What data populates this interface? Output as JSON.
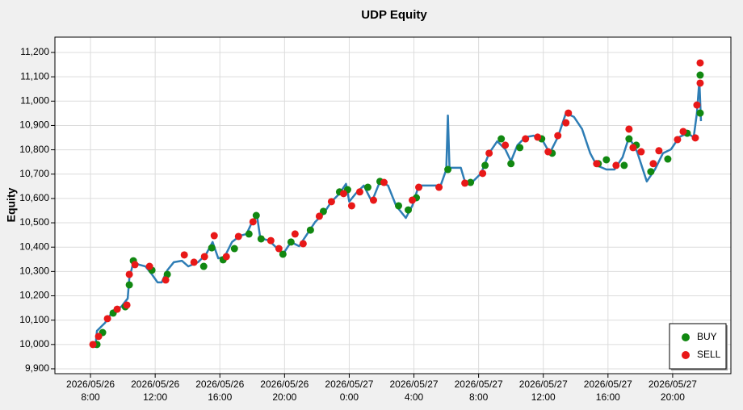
{
  "chart_data": {
    "type": "line",
    "title": "UDP Equity",
    "ylabel": "Equity",
    "xlim": [
      5.8,
      47.6
    ],
    "ylim": [
      9880,
      11263
    ],
    "xticks": [
      {
        "value": 8,
        "label": "2026/05/26\n8:00"
      },
      {
        "value": 12,
        "label": "2026/05/26\n12:00"
      },
      {
        "value": 16,
        "label": "2026/05/26\n16:00"
      },
      {
        "value": 20,
        "label": "2026/05/26\n20:00"
      },
      {
        "value": 24,
        "label": "2026/05/27\n0:00"
      },
      {
        "value": 28,
        "label": "2026/05/27\n4:00"
      },
      {
        "value": 32,
        "label": "2026/05/27\n8:00"
      },
      {
        "value": 36,
        "label": "2026/05/27\n12:00"
      },
      {
        "value": 40,
        "label": "2026/05/27\n16:00"
      },
      {
        "value": 44,
        "label": "2026/05/27\n20:00"
      }
    ],
    "yticks": [
      {
        "value": 9900,
        "label": "9,900"
      },
      {
        "value": 10000,
        "label": "10,000"
      },
      {
        "value": 10100,
        "label": "10,100"
      },
      {
        "value": 10200,
        "label": "10,200"
      },
      {
        "value": 10300,
        "label": "10,300"
      },
      {
        "value": 10400,
        "label": "10,400"
      },
      {
        "value": 10500,
        "label": "10,500"
      },
      {
        "value": 10600,
        "label": "10,600"
      },
      {
        "value": 10700,
        "label": "10,700"
      },
      {
        "value": 10800,
        "label": "10,800"
      },
      {
        "value": 10900,
        "label": "10,900"
      },
      {
        "value": 11000,
        "label": "11,000"
      },
      {
        "value": 11100,
        "label": "11,100"
      },
      {
        "value": 11200,
        "label": "11,200"
      }
    ],
    "grid": true,
    "legend": "lower right",
    "series": [
      {
        "type": "line",
        "color": "#2e7db5",
        "x": [
          8.0,
          8.3,
          8.4,
          8.9,
          9.4,
          9.9,
          10.3,
          10.4,
          10.65,
          11.0,
          11.4,
          11.8,
          12.15,
          12.4,
          12.75,
          13.15,
          13.65,
          14.05,
          14.65,
          15.15,
          15.55,
          15.9,
          16.3,
          16.75,
          17.25,
          17.65,
          18.0,
          18.3,
          18.5,
          19.05,
          19.55,
          19.9,
          20.4,
          20.9,
          21.4,
          21.9,
          22.4,
          22.9,
          23.4,
          23.8,
          24.0,
          24.4,
          24.9,
          25.4,
          25.9,
          26.4,
          26.9,
          27.5,
          27.9,
          28.3,
          28.9,
          29.65,
          30.0,
          30.1,
          30.2,
          30.9,
          31.15,
          31.65,
          32.15,
          32.65,
          33.15,
          33.65,
          34.0,
          34.4,
          34.9,
          35.4,
          35.9,
          36.4,
          36.9,
          37.4,
          37.9,
          38.4,
          38.9,
          39.3,
          39.9,
          40.4,
          40.9,
          41.3,
          41.8,
          42.4,
          42.9,
          43.4,
          43.9,
          44.4,
          44.9,
          45.3,
          45.5,
          45.65,
          45.75
        ],
        "values": [
          10000,
          9990,
          10056,
          10089,
          10139,
          10155,
          10189,
          10271,
          10338,
          10328,
          10321,
          10288,
          10255,
          10255,
          10305,
          10338,
          10344,
          10321,
          10338,
          10371,
          10421,
          10354,
          10361,
          10421,
          10447,
          10454,
          10504,
          10527,
          10437,
          10427,
          10394,
          10371,
          10421,
          10404,
          10454,
          10504,
          10537,
          10587,
          10620,
          10660,
          10587,
          10620,
          10653,
          10587,
          10670,
          10653,
          10570,
          10520,
          10570,
          10653,
          10653,
          10653,
          10719,
          10941,
          10726,
          10726,
          10670,
          10670,
          10703,
          10786,
          10835,
          10802,
          10753,
          10819,
          10852,
          10858,
          10845,
          10786,
          10852,
          10951,
          10935,
          10885,
          10786,
          10736,
          10719,
          10719,
          10769,
          10852,
          10792,
          10670,
          10719,
          10786,
          10802,
          10852,
          10868,
          10852,
          10951,
          11084,
          10918
        ]
      },
      {
        "type": "scatter",
        "name": "BUY",
        "color": "#118811",
        "x": [
          8.4,
          8.75,
          9.4,
          10.15,
          10.4,
          10.65,
          11.8,
          12.75,
          15.0,
          15.5,
          16.2,
          16.9,
          17.8,
          18.25,
          18.55,
          19.9,
          20.4,
          21.6,
          22.4,
          23.4,
          23.9,
          25.15,
          25.9,
          27.05,
          27.65,
          28.15,
          30.1,
          31.5,
          32.4,
          33.4,
          34.0,
          34.55,
          35.9,
          36.55,
          39.4,
          39.9,
          41.0,
          41.3,
          41.75,
          42.65,
          43.7,
          44.9,
          45.7,
          45.7
        ],
        "values": [
          10000,
          10049,
          10129,
          10155,
          10245,
          10344,
          10305,
          10288,
          10321,
          10397,
          10348,
          10394,
          10454,
          10530,
          10434,
          10371,
          10421,
          10470,
          10547,
          10627,
          10636,
          10646,
          10670,
          10570,
          10553,
          10603,
          10719,
          10666,
          10736,
          10845,
          10743,
          10809,
          10845,
          10786,
          10743,
          10759,
          10736,
          10845,
          10819,
          10710,
          10762,
          10868,
          11107,
          10951
        ]
      },
      {
        "type": "scatter",
        "name": "SELL",
        "color": "#e81818",
        "x": [
          8.15,
          8.5,
          9.05,
          9.65,
          10.25,
          10.4,
          10.75,
          11.65,
          12.65,
          13.8,
          14.4,
          15.05,
          15.65,
          16.4,
          17.15,
          18.05,
          19.15,
          19.65,
          20.65,
          21.15,
          22.15,
          22.9,
          23.65,
          24.15,
          24.65,
          25.5,
          26.15,
          27.9,
          28.3,
          29.55,
          31.15,
          32.25,
          32.65,
          33.65,
          34.9,
          35.65,
          36.3,
          36.9,
          37.4,
          37.55,
          39.3,
          40.5,
          41.3,
          41.55,
          42.05,
          42.8,
          43.15,
          44.3,
          44.65,
          45.4,
          45.5,
          45.7,
          45.7
        ],
        "values": [
          10000,
          10033,
          10106,
          10145,
          10162,
          10288,
          10328,
          10321,
          10265,
          10368,
          10338,
          10361,
          10447,
          10361,
          10444,
          10504,
          10427,
          10394,
          10454,
          10414,
          10527,
          10587,
          10620,
          10570,
          10627,
          10593,
          10666,
          10593,
          10646,
          10646,
          10663,
          10703,
          10786,
          10819,
          10845,
          10852,
          10792,
          10858,
          10911,
          10951,
          10743,
          10736,
          10885,
          10809,
          10792,
          10743,
          10796,
          10842,
          10875,
          10849,
          10984,
          11074,
          11157
        ]
      }
    ]
  }
}
